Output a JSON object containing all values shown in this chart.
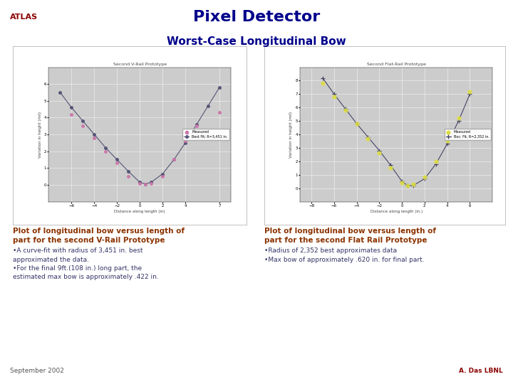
{
  "title_main": "Pixel Detector",
  "title_atlas": "ATLAS",
  "subtitle": "Worst-Case Longitudinal Bow",
  "title_color": "#00008B",
  "atlas_color": "#8B0000",
  "background": "#ffffff",
  "footer_left": "September 2002",
  "footer_right": "A. Das LBNL",
  "plot1_title": "Second V-Rail Prototype",
  "plot1_xlabel": "Distance along length (in)",
  "plot1_ylabel": "Variation in height (mil)",
  "plot1_xlim": [
    -8,
    8
  ],
  "plot1_ylim": [
    -1,
    7
  ],
  "plot1_xticks": [
    -6,
    -4,
    -2,
    0,
    2,
    4,
    7
  ],
  "plot1_yticks": [
    0,
    1,
    2,
    3,
    4,
    5,
    6
  ],
  "plot1_measured_x": [
    -6,
    -5,
    -4,
    -3,
    -2,
    -1,
    0,
    0.5,
    1,
    2,
    3,
    4,
    5,
    7
  ],
  "plot1_measured_y": [
    4.2,
    3.5,
    2.8,
    2.0,
    1.3,
    0.5,
    0.1,
    0.05,
    0.1,
    0.5,
    1.5,
    2.6,
    3.5,
    4.3
  ],
  "plot1_fit_x": [
    -7,
    -6,
    -5,
    -4,
    -3,
    -2,
    -1,
    0,
    0.5,
    1,
    2,
    3,
    4,
    5,
    6,
    7
  ],
  "plot1_fit_y": [
    5.5,
    4.6,
    3.8,
    3.0,
    2.2,
    1.5,
    0.8,
    0.15,
    0.05,
    0.15,
    0.65,
    1.5,
    2.5,
    3.6,
    4.7,
    5.8
  ],
  "plot1_caption_line1": "Plot of longitudinal bow versus length of",
  "plot1_caption_line2": "part for the second V-Rail Prototype",
  "plot1_bullet1": "•A curve-fit with radius of 3,451 in. best",
  "plot1_bullet1b": "approximated the data.",
  "plot1_bullet2": "•For the final 9ft.(108 in.) long part, the",
  "plot1_bullet2b": "estimated max bow is approximately .422 in.",
  "plot1_legend_measured": "Measured",
  "plot1_legend_fit": "Best Fit; R=3,451 in.",
  "plot1_measured_color": "#CC77AA",
  "plot1_fit_color": "#555577",
  "plot2_title": "Second Flat-Rail Prototype",
  "plot2_xlabel": "Distance along length (in.)",
  "plot2_ylabel": "Variation in height (mil)",
  "plot2_xlim": [
    -9,
    8
  ],
  "plot2_ylim": [
    -1,
    9
  ],
  "plot2_xticks": [
    -8,
    -6,
    -4,
    -2,
    0,
    2,
    4,
    6
  ],
  "plot2_yticks": [
    0,
    1,
    2,
    3,
    4,
    5,
    6,
    7,
    8
  ],
  "plot2_measured_x": [
    -7,
    -6,
    -5,
    -4,
    -3,
    -2,
    -1,
    0,
    0.5,
    1,
    2,
    3,
    4,
    5,
    6
  ],
  "plot2_measured_y": [
    7.8,
    6.8,
    5.8,
    4.8,
    3.7,
    2.6,
    1.5,
    0.4,
    0.2,
    0.3,
    0.8,
    2.0,
    3.5,
    5.2,
    7.2
  ],
  "plot2_fit_x": [
    -7,
    -6,
    -5,
    -4,
    -3,
    -2,
    -1,
    0,
    0.5,
    1,
    2,
    3,
    4,
    5,
    6
  ],
  "plot2_fit_y": [
    8.2,
    7.0,
    5.9,
    4.8,
    3.8,
    2.8,
    1.7,
    0.5,
    0.2,
    0.2,
    0.7,
    1.8,
    3.3,
    5.0,
    7.0
  ],
  "plot2_caption_line1": "Plot of longitudinal bow versus length of",
  "plot2_caption_line2": "part for the second Flat Rail Prototype",
  "plot2_bullet1": "•Radius of 2,352 best approximates data",
  "plot2_bullet2": "•Max bow of approximately .620 in. for final part.",
  "plot2_legend_measured": "Measured",
  "plot2_legend_fit": "Boc: Fit, R=2,352 in.",
  "plot2_measured_color": "#DDDD44",
  "plot2_fit_color": "#444466",
  "caption_color": "#8B3300",
  "bullet_color": "#333366",
  "plot_bg": "#CCCCCC",
  "plot_border": "#999999"
}
